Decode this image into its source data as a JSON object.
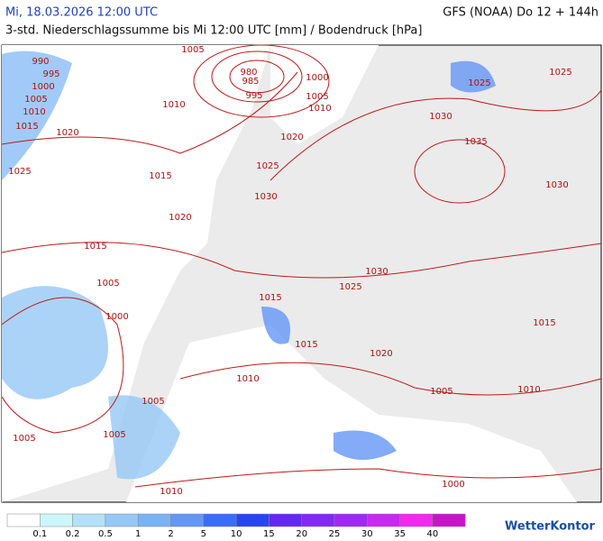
{
  "header": {
    "date": "Mi, 18.03.2026 12:00 UTC",
    "model": "GFS (NOAA) Do 12 + 144h",
    "subtitle": "3-std. Niederschlagssumme bis Mi 12:00 UTC [mm] / Bodendruck [hPa]"
  },
  "isobar_labels": [
    "990",
    "995",
    "1000",
    "1005",
    "1010",
    "1015",
    "1020",
    "1025",
    "1005",
    "980",
    "985",
    "995",
    "1000",
    "1005",
    "1010",
    "1010",
    "1020",
    "1025",
    "1015",
    "1030",
    "1020",
    "1015",
    "1005",
    "1000",
    "1015",
    "1025",
    "1030",
    "1015",
    "1020",
    "1010",
    "1005",
    "1005",
    "1005",
    "1010",
    "1005",
    "1010",
    "1000",
    "1015",
    "1030",
    "1035",
    "1030",
    "1025",
    "1025"
  ],
  "legend": {
    "colors": [
      "#ffffff",
      "#ccf6fa",
      "#b4e1f7",
      "#96c8f5",
      "#7ab3f5",
      "#6496f5",
      "#3c6cf5",
      "#2846f0",
      "#6428f0",
      "#8228f0",
      "#a028f0",
      "#c828f0",
      "#f028f0",
      "#c814c8"
    ],
    "values": [
      0.1,
      0.2,
      0.5,
      1,
      2,
      5,
      10,
      15,
      20,
      25,
      30,
      35,
      40
    ]
  },
  "logo": "WetterKontor"
}
